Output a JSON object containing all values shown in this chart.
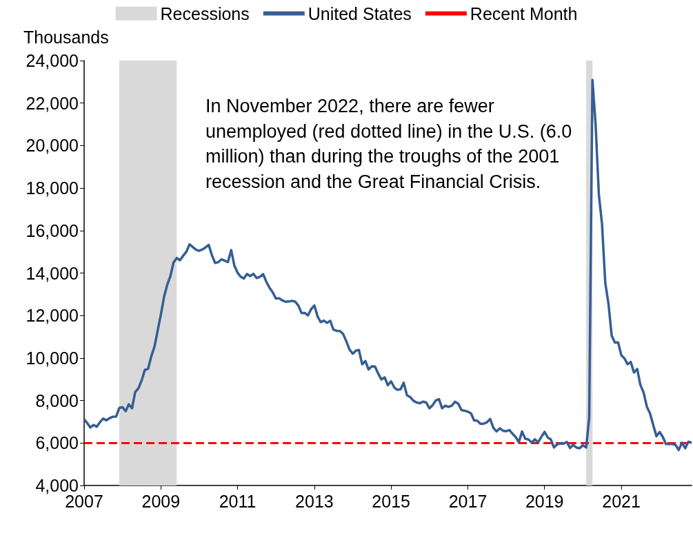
{
  "chart_data": {
    "type": "line",
    "ylabel": "Thousands",
    "x": [
      "2007-01",
      "2007-02",
      "2007-03",
      "2007-04",
      "2007-05",
      "2007-06",
      "2007-07",
      "2007-08",
      "2007-09",
      "2007-10",
      "2007-11",
      "2007-12",
      "2008-01",
      "2008-02",
      "2008-03",
      "2008-04",
      "2008-05",
      "2008-06",
      "2008-07",
      "2008-08",
      "2008-09",
      "2008-10",
      "2008-11",
      "2008-12",
      "2009-01",
      "2009-02",
      "2009-03",
      "2009-04",
      "2009-05",
      "2009-06",
      "2009-07",
      "2009-08",
      "2009-09",
      "2009-10",
      "2009-11",
      "2009-12",
      "2010-01",
      "2010-02",
      "2010-03",
      "2010-04",
      "2010-05",
      "2010-06",
      "2010-07",
      "2010-08",
      "2010-09",
      "2010-10",
      "2010-11",
      "2010-12",
      "2011-01",
      "2011-02",
      "2011-03",
      "2011-04",
      "2011-05",
      "2011-06",
      "2011-07",
      "2011-08",
      "2011-09",
      "2011-10",
      "2011-11",
      "2011-12",
      "2012-01",
      "2012-02",
      "2012-03",
      "2012-04",
      "2012-05",
      "2012-06",
      "2012-07",
      "2012-08",
      "2012-09",
      "2012-10",
      "2012-11",
      "2012-12",
      "2013-01",
      "2013-02",
      "2013-03",
      "2013-04",
      "2013-05",
      "2013-06",
      "2013-07",
      "2013-08",
      "2013-09",
      "2013-10",
      "2013-11",
      "2013-12",
      "2014-01",
      "2014-02",
      "2014-03",
      "2014-04",
      "2014-05",
      "2014-06",
      "2014-07",
      "2014-08",
      "2014-09",
      "2014-10",
      "2014-11",
      "2014-12",
      "2015-01",
      "2015-02",
      "2015-03",
      "2015-04",
      "2015-05",
      "2015-06",
      "2015-07",
      "2015-08",
      "2015-09",
      "2015-10",
      "2015-11",
      "2015-12",
      "2016-01",
      "2016-02",
      "2016-03",
      "2016-04",
      "2016-05",
      "2016-06",
      "2016-07",
      "2016-08",
      "2016-09",
      "2016-10",
      "2016-11",
      "2016-12",
      "2017-01",
      "2017-02",
      "2017-03",
      "2017-04",
      "2017-05",
      "2017-06",
      "2017-07",
      "2017-08",
      "2017-09",
      "2017-10",
      "2017-11",
      "2017-12",
      "2018-01",
      "2018-02",
      "2018-03",
      "2018-04",
      "2018-05",
      "2018-06",
      "2018-07",
      "2018-08",
      "2018-09",
      "2018-10",
      "2018-11",
      "2018-12",
      "2019-01",
      "2019-02",
      "2019-03",
      "2019-04",
      "2019-05",
      "2019-06",
      "2019-07",
      "2019-08",
      "2019-09",
      "2019-10",
      "2019-11",
      "2019-12",
      "2020-01",
      "2020-02",
      "2020-03",
      "2020-04",
      "2020-05",
      "2020-06",
      "2020-07",
      "2020-08",
      "2020-09",
      "2020-10",
      "2020-11",
      "2020-12",
      "2021-01",
      "2021-02",
      "2021-03",
      "2021-04",
      "2021-05",
      "2021-06",
      "2021-07",
      "2021-08",
      "2021-09",
      "2021-10",
      "2021-11",
      "2021-12",
      "2022-01",
      "2022-02",
      "2022-03",
      "2022-04",
      "2022-05",
      "2022-06",
      "2022-07",
      "2022-08",
      "2022-09",
      "2022-10",
      "2022-11"
    ],
    "series": [
      {
        "name": "United States",
        "color": "#355e93",
        "values": [
          7116,
          6927,
          6731,
          6850,
          6766,
          6979,
          7149,
          7067,
          7170,
          7237,
          7240,
          7645,
          7685,
          7497,
          7822,
          7637,
          8395,
          8575,
          8937,
          9438,
          9494,
          10074,
          10538,
          11286,
          12058,
          12898,
          13426,
          13853,
          14499,
          14707,
          14601,
          14814,
          15009,
          15352,
          15219,
          15098,
          15046,
          15113,
          15202,
          15325,
          14849,
          14474,
          14512,
          14648,
          14579,
          14516,
          15081,
          14348,
          14013,
          13820,
          13737,
          13957,
          13855,
          13962,
          13763,
          13818,
          13948,
          13594,
          13302,
          13093,
          12797,
          12813,
          12713,
          12646,
          12660,
          12692,
          12656,
          12471,
          12115,
          12124,
          12005,
          12298,
          12471,
          11950,
          11689,
          11760,
          11654,
          11751,
          11335,
          11279,
          11270,
          11136,
          10787,
          10404,
          10202,
          10349,
          10380,
          9702,
          9859,
          9460,
          9608,
          9599,
          9262,
          8990,
          9090,
          8717,
          8903,
          8610,
          8504,
          8526,
          8834,
          8247,
          8167,
          7992,
          7907,
          7869,
          7947,
          7907,
          7633,
          7780,
          7999,
          8065,
          7634,
          7759,
          7697,
          7759,
          7941,
          7853,
          7550,
          7519,
          7474,
          7386,
          7062,
          7044,
          6898,
          6912,
          6969,
          7131,
          6711,
          6546,
          6694,
          6579,
          6554,
          6605,
          6440,
          6285,
          6033,
          6541,
          6201,
          6163,
          6016,
          6174,
          6035,
          6282,
          6523,
          6255,
          6173,
          5788,
          5938,
          5975,
          5969,
          6045,
          5764,
          5911,
          5782,
          5753,
          5892,
          5787,
          7185,
          23090,
          20990,
          17697,
          16308,
          13542,
          12535,
          11049,
          10728,
          10736,
          10130,
          9972,
          9710,
          9812,
          9316,
          9484,
          8738,
          8375,
          7705,
          7394,
          6834,
          6319,
          6516,
          6270,
          5952,
          5950,
          5953,
          5914,
          5670,
          6014,
          5753,
          6059,
          6011
        ]
      }
    ],
    "xlim": [
      "2007-01",
      "2022-11"
    ],
    "xticks": [
      "2007",
      "2009",
      "2011",
      "2013",
      "2015",
      "2017",
      "2019",
      "2021"
    ],
    "ylim": [
      4000,
      24000
    ],
    "yticks": [
      {
        "value": 4000,
        "label": "4,000"
      },
      {
        "value": 6000,
        "label": "6,000"
      },
      {
        "value": 8000,
        "label": "8,000"
      },
      {
        "value": 10000,
        "label": "10,000"
      },
      {
        "value": 12000,
        "label": "12,000"
      },
      {
        "value": 14000,
        "label": "14,000"
      },
      {
        "value": 16000,
        "label": "16,000"
      },
      {
        "value": 18000,
        "label": "18,000"
      },
      {
        "value": 20000,
        "label": "20,000"
      },
      {
        "value": 22000,
        "label": "22,000"
      },
      {
        "value": 24000,
        "label": "24,000"
      }
    ],
    "bands": [
      {
        "axis": "x",
        "from": "2007-12",
        "to": "2009-06",
        "label": "Recessions",
        "color": "#d9d9d9"
      },
      {
        "axis": "x",
        "from": "2020-02",
        "to": "2020-04",
        "color": "#d9d9d9"
      }
    ],
    "ref_lines": [
      {
        "axis": "y",
        "value": 6000,
        "label": "Recent Month",
        "color": "#ff0000",
        "line_style": "dashed"
      }
    ],
    "annotations": [
      "In November 2022, there are fewer unemployed (red dotted line) in the U.S. (6.0 million) than during the troughs of the 2001 recession and the Great Financial Crisis."
    ],
    "legend": "top",
    "grid": false,
    "marker": "none",
    "line_style": "solid"
  }
}
